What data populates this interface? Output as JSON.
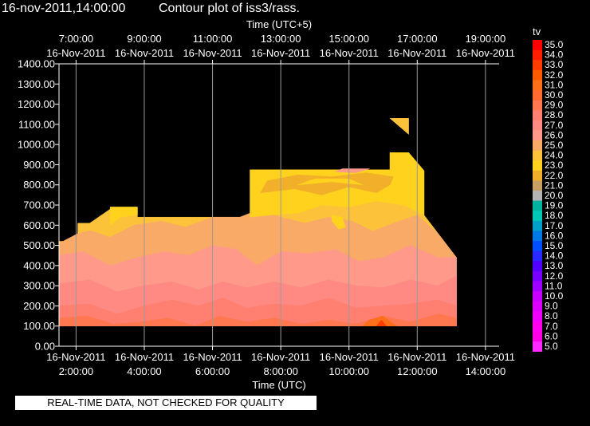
{
  "header": {
    "timestamp": "16-nov-2011,14:00:00",
    "title": "Contour plot of iss3/rass."
  },
  "footer": {
    "qc_notice": "REAL-TIME DATA, NOT CHECKED FOR QUALITY"
  },
  "colors": {
    "background": "#000000",
    "timestamp_text": "#ffff00",
    "text": "#ffffff",
    "grid": "#9a9a9a"
  },
  "chart_data": {
    "type": "heatmap",
    "variable": "tv",
    "xlabel_top": "Time (UTC+5)",
    "xlabel_bottom": "Time (UTC)",
    "xlim_utc_hours": [
      1.5,
      14.4
    ],
    "ylim": [
      0,
      1400
    ],
    "y_ticks": [
      "0.00",
      "100.00",
      "200.00",
      "300.00",
      "400.00",
      "500.00",
      "600.00",
      "700.00",
      "800.00",
      "900.00",
      "1000.00",
      "1100.00",
      "1200.00",
      "1300.00",
      "1400.00"
    ],
    "bottom_ticks": [
      {
        "utc_hour": 2,
        "time": "2:00:00",
        "date": "16-Nov-2011"
      },
      {
        "utc_hour": 4,
        "time": "4:00:00",
        "date": "16-Nov-2011"
      },
      {
        "utc_hour": 6,
        "time": "6:00:00",
        "date": "16-Nov-2011"
      },
      {
        "utc_hour": 8,
        "time": "8:00:00",
        "date": "16-Nov-2011"
      },
      {
        "utc_hour": 10,
        "time": "10:00:00",
        "date": "16-Nov-2011"
      },
      {
        "utc_hour": 12,
        "time": "12:00:00",
        "date": "16-Nov-2011"
      },
      {
        "utc_hour": 14,
        "time": "14:00:00",
        "date": "16-Nov-2011"
      }
    ],
    "top_ticks": [
      {
        "utc_hour": 2,
        "time": "7:00:00",
        "date": "16-Nov-2011"
      },
      {
        "utc_hour": 4,
        "time": "9:00:00",
        "date": "16-Nov-2011"
      },
      {
        "utc_hour": 6,
        "time": "11:00:00",
        "date": "16-Nov-2011"
      },
      {
        "utc_hour": 8,
        "time": "13:00:00",
        "date": "16-Nov-2011"
      },
      {
        "utc_hour": 10,
        "time": "15:00:00",
        "date": "16-Nov-2011"
      },
      {
        "utc_hour": 12,
        "time": "17:00:00",
        "date": "16-Nov-2011"
      },
      {
        "utc_hour": 14,
        "time": "19:00:00",
        "date": "16-Nov-2011"
      }
    ],
    "grid": true,
    "legend_placement": "right",
    "colorbar": [
      {
        "label": "35.0",
        "color": "#ff0000"
      },
      {
        "label": "34.0",
        "color": "#ff1e00"
      },
      {
        "label": "33.0",
        "color": "#ff3c00"
      },
      {
        "label": "32.0",
        "color": "#ff5a00"
      },
      {
        "label": "31.0",
        "color": "#ff6e18"
      },
      {
        "label": "30.0",
        "color": "#ff6a30"
      },
      {
        "label": "29.0",
        "color": "#ff7850"
      },
      {
        "label": "28.0",
        "color": "#ff8070"
      },
      {
        "label": "27.0",
        "color": "#ff8a84"
      },
      {
        "label": "26.0",
        "color": "#ff9a8a"
      },
      {
        "label": "25.0",
        "color": "#f8aa66"
      },
      {
        "label": "24.0",
        "color": "#fcc23a"
      },
      {
        "label": "23.0",
        "color": "#ffd21e"
      },
      {
        "label": "22.0",
        "color": "#f2b02a"
      },
      {
        "label": "21.0",
        "color": "#c8a064"
      },
      {
        "label": "20.0",
        "color": "#b4b4b4"
      },
      {
        "label": "19.0",
        "color": "#00b4a0"
      },
      {
        "label": "18.0",
        "color": "#00c8b4"
      },
      {
        "label": "17.0",
        "color": "#00a0c8"
      },
      {
        "label": "16.0",
        "color": "#0078e6"
      },
      {
        "label": "15.0",
        "color": "#0050ff"
      },
      {
        "label": "14.0",
        "color": "#2828ff"
      },
      {
        "label": "13.0",
        "color": "#5000ff"
      },
      {
        "label": "12.0",
        "color": "#7800ff"
      },
      {
        "label": "11.0",
        "color": "#a000ff"
      },
      {
        "label": "10.0",
        "color": "#c800ff"
      },
      {
        "label": "9.0",
        "color": "#dc00ff"
      },
      {
        "label": "8.0",
        "color": "#f000ff"
      },
      {
        "label": "7.0",
        "color": "#ff00f0"
      },
      {
        "label": "6.0",
        "color": "#ff00e6"
      },
      {
        "label": "5.0",
        "color": "#ff28ff"
      }
    ],
    "regions": [
      {
        "value": 24,
        "points": [
          [
            1.5,
            100
          ],
          [
            1.5,
            520
          ],
          [
            2.05,
            520
          ],
          [
            2.05,
            610
          ],
          [
            3.0,
            610
          ],
          [
            3.0,
            690
          ],
          [
            3.8,
            690
          ],
          [
            3.8,
            640
          ],
          [
            7.1,
            640
          ],
          [
            7.1,
            875
          ],
          [
            11.2,
            875
          ],
          [
            11.2,
            960
          ],
          [
            11.75,
            960
          ],
          [
            12.2,
            870
          ],
          [
            12.2,
            650
          ],
          [
            13.15,
            440
          ],
          [
            13.15,
            100
          ]
        ]
      },
      {
        "value": 25,
        "points": [
          [
            1.5,
            100
          ],
          [
            1.5,
            510
          ],
          [
            2.3,
            580
          ],
          [
            3.0,
            540
          ],
          [
            3.7,
            600
          ],
          [
            4.5,
            620
          ],
          [
            5.2,
            590
          ],
          [
            6.0,
            640
          ],
          [
            6.8,
            640
          ],
          [
            7.4,
            680
          ],
          [
            8.0,
            640
          ],
          [
            8.7,
            610
          ],
          [
            9.4,
            640
          ],
          [
            10.1,
            620
          ],
          [
            10.7,
            570
          ],
          [
            11.3,
            610
          ],
          [
            12.0,
            650
          ],
          [
            12.6,
            560
          ],
          [
            13.15,
            440
          ],
          [
            13.15,
            100
          ]
        ]
      },
      {
        "value": 26,
        "points": [
          [
            1.5,
            100
          ],
          [
            1.5,
            450
          ],
          [
            2.2,
            470
          ],
          [
            3.0,
            400
          ],
          [
            3.8,
            440
          ],
          [
            4.6,
            470
          ],
          [
            5.3,
            450
          ],
          [
            6.0,
            500
          ],
          [
            6.7,
            480
          ],
          [
            7.3,
            400
          ],
          [
            8.0,
            470
          ],
          [
            8.8,
            460
          ],
          [
            9.6,
            480
          ],
          [
            10.3,
            420
          ],
          [
            11.0,
            440
          ],
          [
            11.8,
            500
          ],
          [
            12.6,
            440
          ],
          [
            13.15,
            440
          ],
          [
            13.15,
            100
          ]
        ]
      },
      {
        "value": 27,
        "points": [
          [
            1.5,
            100
          ],
          [
            1.5,
            310
          ],
          [
            2.4,
            330
          ],
          [
            3.2,
            270
          ],
          [
            4.0,
            300
          ],
          [
            4.8,
            320
          ],
          [
            5.6,
            280
          ],
          [
            6.3,
            320
          ],
          [
            7.0,
            290
          ],
          [
            7.8,
            320
          ],
          [
            8.6,
            290
          ],
          [
            9.4,
            330
          ],
          [
            10.2,
            300
          ],
          [
            11.0,
            290
          ],
          [
            11.8,
            330
          ],
          [
            12.6,
            300
          ],
          [
            13.15,
            350
          ],
          [
            13.15,
            100
          ]
        ]
      },
      {
        "value": 28,
        "points": [
          [
            1.5,
            100
          ],
          [
            1.5,
            200
          ],
          [
            2.4,
            210
          ],
          [
            3.2,
            160
          ],
          [
            4.0,
            200
          ],
          [
            4.8,
            230
          ],
          [
            5.6,
            200
          ],
          [
            6.3,
            240
          ],
          [
            7.0,
            190
          ],
          [
            7.8,
            210
          ],
          [
            8.6,
            200
          ],
          [
            9.4,
            240
          ],
          [
            10.2,
            190
          ],
          [
            11.0,
            200
          ],
          [
            11.8,
            210
          ],
          [
            12.6,
            230
          ],
          [
            13.15,
            200
          ],
          [
            13.15,
            100
          ]
        ]
      },
      {
        "value": 29,
        "points": [
          [
            1.5,
            100
          ],
          [
            1.5,
            140
          ],
          [
            2.3,
            150
          ],
          [
            3.1,
            110
          ],
          [
            3.9,
            120
          ],
          [
            4.7,
            140
          ],
          [
            5.5,
            100
          ],
          [
            6.2,
            150
          ],
          [
            7.0,
            120
          ],
          [
            7.8,
            140
          ],
          [
            8.6,
            110
          ],
          [
            9.4,
            130
          ],
          [
            10.2,
            110
          ],
          [
            11.0,
            150
          ],
          [
            11.8,
            120
          ],
          [
            12.6,
            160
          ],
          [
            13.15,
            140
          ],
          [
            13.15,
            100
          ]
        ]
      },
      {
        "value": 31,
        "points": [
          [
            10.4,
            100
          ],
          [
            10.6,
            130
          ],
          [
            11.0,
            150
          ],
          [
            11.3,
            110
          ],
          [
            11.4,
            100
          ]
        ]
      },
      {
        "value": 33,
        "points": [
          [
            10.8,
            100
          ],
          [
            10.95,
            130
          ],
          [
            11.1,
            100
          ]
        ]
      },
      {
        "value": 23,
        "points": [
          [
            7.1,
            640
          ],
          [
            7.1,
            875
          ],
          [
            11.2,
            875
          ],
          [
            11.2,
            960
          ],
          [
            11.75,
            960
          ],
          [
            12.2,
            870
          ],
          [
            12.2,
            650
          ],
          [
            11.6,
            700
          ],
          [
            10.8,
            720
          ],
          [
            10.0,
            690
          ],
          [
            9.2,
            700
          ],
          [
            8.5,
            660
          ],
          [
            7.7,
            650
          ]
        ]
      },
      {
        "value": 22,
        "points": [
          [
            7.4,
            760
          ],
          [
            8.4,
            780
          ],
          [
            9.2,
            750
          ],
          [
            10.0,
            790
          ],
          [
            10.8,
            760
          ],
          [
            11.2,
            800
          ],
          [
            11.3,
            840
          ],
          [
            10.5,
            860
          ],
          [
            9.5,
            840
          ],
          [
            8.5,
            850
          ],
          [
            7.6,
            820
          ]
        ]
      },
      {
        "value": 23,
        "points": [
          [
            8.5,
            800
          ],
          [
            9.5,
            815
          ],
          [
            10.4,
            800
          ],
          [
            10.0,
            830
          ],
          [
            9.0,
            830
          ]
        ]
      },
      {
        "value": 24,
        "points": [
          [
            11.2,
            1130
          ],
          [
            11.75,
            1130
          ],
          [
            11.75,
            1050
          ]
        ]
      },
      {
        "value": 24,
        "points": [
          [
            2.05,
            560
          ],
          [
            3.0,
            600
          ],
          [
            3.4,
            640
          ],
          [
            3.0,
            680
          ],
          [
            2.4,
            610
          ]
        ]
      },
      {
        "value": 23,
        "points": [
          [
            3.0,
            600
          ],
          [
            3.3,
            640
          ],
          [
            3.8,
            650
          ],
          [
            3.8,
            690
          ],
          [
            3.0,
            690
          ]
        ]
      },
      {
        "value": 23,
        "points": [
          [
            9.5,
            650
          ],
          [
            9.8,
            640
          ],
          [
            9.9,
            590
          ],
          [
            9.7,
            580
          ],
          [
            9.5,
            620
          ]
        ]
      },
      {
        "value": 26,
        "points": [
          [
            10.6,
            880
          ],
          [
            10.2,
            860
          ],
          [
            9.6,
            865
          ],
          [
            9.8,
            880
          ]
        ]
      }
    ]
  }
}
